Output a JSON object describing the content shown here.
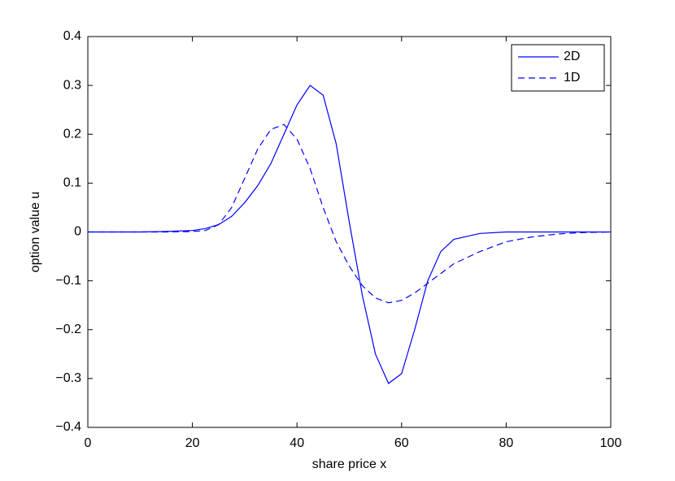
{
  "chart_data": {
    "type": "line",
    "xlabel": "share price x",
    "ylabel": "option value u",
    "x": [
      0,
      5,
      10,
      15,
      20,
      22.5,
      25,
      27.5,
      30,
      32.5,
      35,
      37.5,
      40,
      42.5,
      45,
      47.5,
      50,
      52.5,
      55,
      57.5,
      60,
      62.5,
      65,
      67.5,
      70,
      75,
      80,
      85,
      90,
      95,
      100
    ],
    "series": [
      {
        "name": "2D",
        "color": "#0000ff",
        "style": "solid",
        "values": [
          0,
          0,
          0,
          0.001,
          0.003,
          0.007,
          0.015,
          0.032,
          0.06,
          0.095,
          0.14,
          0.2,
          0.26,
          0.3,
          0.28,
          0.18,
          0.02,
          -0.13,
          -0.25,
          -0.31,
          -0.29,
          -0.2,
          -0.1,
          -0.04,
          -0.015,
          -0.003,
          0,
          0,
          0,
          0,
          0
        ]
      },
      {
        "name": "1D",
        "color": "#0000ff",
        "style": "dashed",
        "values": [
          0,
          0,
          0,
          0,
          0.001,
          0.003,
          0.015,
          0.05,
          0.11,
          0.17,
          0.21,
          0.22,
          0.19,
          0.13,
          0.05,
          -0.02,
          -0.07,
          -0.11,
          -0.135,
          -0.145,
          -0.14,
          -0.125,
          -0.105,
          -0.085,
          -0.065,
          -0.04,
          -0.02,
          -0.01,
          -0.004,
          -0.001,
          0
        ]
      }
    ],
    "xlim": [
      0,
      100
    ],
    "xticks": [
      0,
      20,
      40,
      60,
      80,
      100
    ],
    "ylim": [
      -0.4,
      0.4
    ],
    "yticks": [
      {
        "value": -0.4,
        "label": "−0.4"
      },
      {
        "value": -0.3,
        "label": "−0.3"
      },
      {
        "value": -0.2,
        "label": "−0.2"
      },
      {
        "value": -0.1,
        "label": "−0.1"
      },
      0,
      0.1,
      0.2,
      0.3,
      0.4
    ],
    "grid": false,
    "legend": "upper-right"
  }
}
